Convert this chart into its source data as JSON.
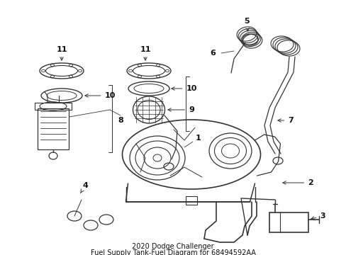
{
  "title_line1": "2020 Dodge Challenger",
  "title_line2": "Fuel Supply Tank-Fuel Diagram for 68494592AA",
  "background_color": "#ffffff",
  "line_color": "#333333",
  "label_color": "#111111",
  "font_size": 7.5,
  "fig_width": 4.89,
  "fig_height": 3.6,
  "dpi": 100
}
